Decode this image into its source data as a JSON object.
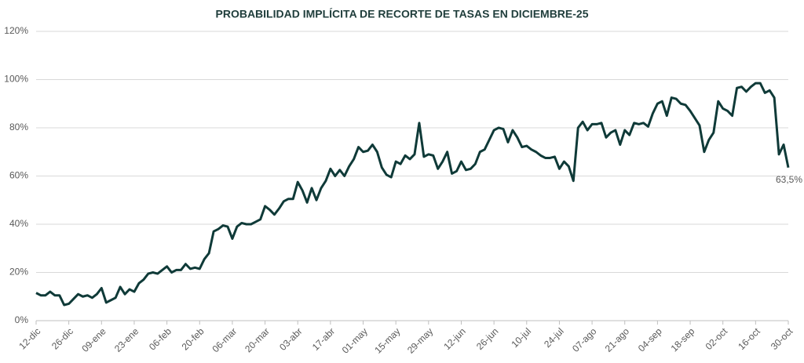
{
  "chart_data": {
    "type": "line",
    "title": "PROBABILIDAD IMPLÍCITA DE RECORTE DE TASAS EN DICIEMBRE-25",
    "categories": [
      "12-dic",
      null,
      null,
      null,
      null,
      null,
      null,
      "26-dic",
      null,
      null,
      null,
      null,
      null,
      null,
      "09-ene",
      null,
      null,
      null,
      null,
      null,
      null,
      "23-ene",
      null,
      null,
      null,
      null,
      null,
      null,
      "06-feb",
      null,
      null,
      null,
      null,
      null,
      null,
      "20-feb",
      null,
      null,
      null,
      null,
      null,
      null,
      "06-mar",
      null,
      null,
      null,
      null,
      null,
      null,
      "20-mar",
      null,
      null,
      null,
      null,
      null,
      null,
      "03-abr",
      null,
      null,
      null,
      null,
      null,
      null,
      "17-abr",
      null,
      null,
      null,
      null,
      null,
      null,
      "01-may",
      null,
      null,
      null,
      null,
      null,
      null,
      "15-may",
      null,
      null,
      null,
      null,
      null,
      null,
      "29-may",
      null,
      null,
      null,
      null,
      null,
      null,
      "12-jun",
      null,
      null,
      null,
      null,
      null,
      null,
      "26-jun",
      null,
      null,
      null,
      null,
      null,
      null,
      "10-jul",
      null,
      null,
      null,
      null,
      null,
      null,
      "24-jul",
      null,
      null,
      null,
      null,
      null,
      null,
      "07-ago",
      null,
      null,
      null,
      null,
      null,
      null,
      "21-ago",
      null,
      null,
      null,
      null,
      null,
      null,
      "04-sep",
      null,
      null,
      null,
      null,
      null,
      null,
      "18-sep",
      null,
      null,
      null,
      null,
      null,
      null,
      "02-oct",
      null,
      null,
      null,
      null,
      null,
      null,
      "16-oct",
      null,
      null,
      null,
      null,
      null,
      null,
      "30-oct"
    ],
    "values": [
      11.5,
      10.5,
      10.5,
      12,
      10.5,
      10.5,
      6.5,
      7,
      9,
      11,
      10,
      10.5,
      9.5,
      11,
      13.5,
      7.5,
      8.5,
      9.5,
      14,
      11,
      13,
      12,
      15.5,
      17,
      19.5,
      20,
      19.5,
      21,
      22.5,
      20,
      21,
      21,
      23.5,
      21.5,
      22,
      21.5,
      25.5,
      28,
      37,
      38,
      39.5,
      39,
      34,
      39,
      40.5,
      40,
      40,
      41,
      42,
      47.5,
      46,
      44,
      46.5,
      49.5,
      50.5,
      50.5,
      57.5,
      54,
      49,
      55,
      50,
      55,
      58,
      63,
      60,
      62.5,
      60,
      64,
      67,
      72,
      70,
      70.5,
      73,
      70,
      63.5,
      60.5,
      59.5,
      66,
      65,
      68.5,
      67,
      69,
      82,
      68,
      69,
      68.5,
      63,
      66,
      70,
      61,
      62,
      66,
      62.5,
      63,
      65,
      70,
      71,
      75,
      79,
      80,
      79.5,
      74,
      79,
      76,
      72,
      72.5,
      71,
      70,
      68.5,
      67.5,
      67.5,
      68,
      63,
      66,
      64,
      58,
      80,
      82.5,
      79,
      81.5,
      81.5,
      82,
      76,
      78,
      79,
      73,
      79,
      77,
      82,
      81.5,
      82,
      80.5,
      86,
      90,
      91,
      85,
      92.5,
      92,
      90,
      89.5,
      87,
      84,
      81,
      70,
      75,
      78,
      91,
      88,
      87,
      85,
      96.5,
      97,
      95,
      97,
      98.5,
      98.5,
      94.5,
      95.5,
      92.5,
      69,
      73,
      63.5
    ],
    "value_labels": [
      null,
      null,
      null,
      null,
      null,
      null,
      null,
      null,
      null,
      null,
      null,
      null,
      null,
      null,
      null,
      null,
      null,
      null,
      null,
      null,
      null,
      null,
      null,
      null,
      null,
      null,
      null,
      null,
      null,
      null,
      null,
      null,
      null,
      null,
      null,
      null,
      null,
      null,
      null,
      null,
      null,
      null,
      null,
      null,
      null,
      null,
      null,
      null,
      null,
      null,
      null,
      null,
      null,
      null,
      null,
      null,
      null,
      null,
      null,
      null,
      null,
      null,
      null,
      null,
      null,
      null,
      null,
      null,
      null,
      null,
      null,
      null,
      null,
      null,
      null,
      null,
      null,
      null,
      null,
      null,
      null,
      null,
      null,
      null,
      null,
      null,
      null,
      null,
      null,
      null,
      null,
      null,
      null,
      null,
      null,
      null,
      null,
      null,
      null,
      null,
      null,
      null,
      null,
      null,
      null,
      null,
      null,
      null,
      null,
      null,
      null,
      null,
      null,
      null,
      null,
      null,
      null,
      null,
      null,
      null,
      null,
      null,
      null,
      null,
      null,
      null,
      null,
      null,
      null,
      null,
      null,
      null,
      null,
      null,
      null,
      null,
      null,
      null,
      null,
      null,
      null,
      null,
      null,
      null,
      null,
      null,
      null,
      null,
      null,
      null,
      null,
      null,
      null,
      null,
      null,
      null,
      null,
      null,
      null,
      null,
      null,
      "63,5%"
    ],
    "color": "#0f3a38",
    "ylim": [
      0,
      120
    ],
    "yticks": [
      {
        "value": 0,
        "label": "0%"
      },
      {
        "value": 20,
        "label": "20%"
      },
      {
        "value": 40,
        "label": "40%"
      },
      {
        "value": 60,
        "label": "60%"
      },
      {
        "value": 80,
        "label": "80%"
      },
      {
        "value": 100,
        "label": "100%"
      },
      {
        "value": 120,
        "label": "120%"
      }
    ],
    "grid": true
  }
}
